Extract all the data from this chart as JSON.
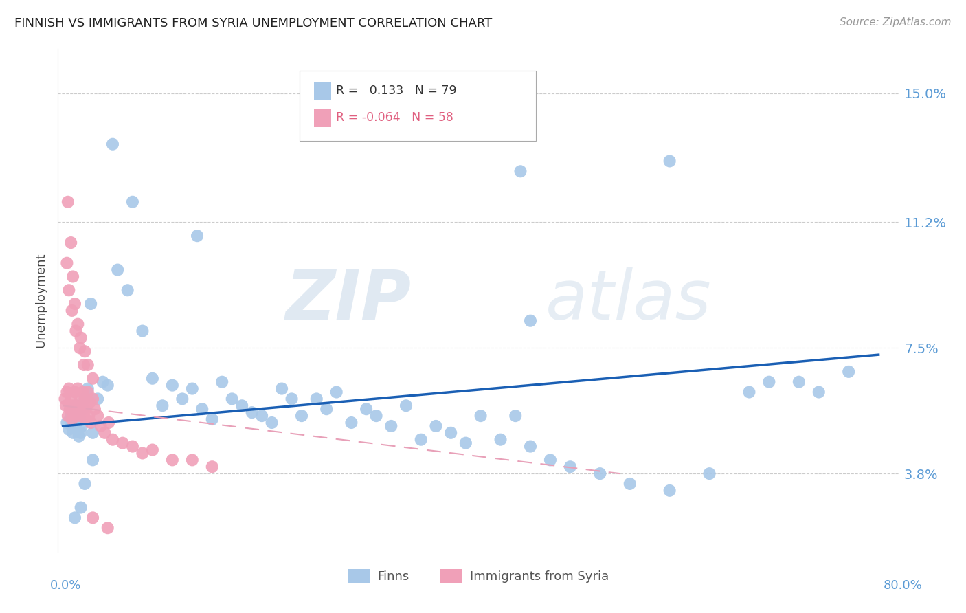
{
  "title": "FINNISH VS IMMIGRANTS FROM SYRIA UNEMPLOYMENT CORRELATION CHART",
  "source": "Source: ZipAtlas.com",
  "ylabel": "Unemployment",
  "ytick_labels": [
    "15.0%",
    "11.2%",
    "7.5%",
    "3.8%"
  ],
  "ytick_values": [
    0.15,
    0.112,
    0.075,
    0.038
  ],
  "ymin": 0.015,
  "ymax": 0.163,
  "xmin": -0.005,
  "xmax": 0.84,
  "color_finns": "#a8c8e8",
  "color_syria": "#f0a0b8",
  "color_line_finns": "#1a5fb4",
  "color_line_syria": "#e8a0b8",
  "color_axis_labels": "#5b9bd5",
  "color_grid": "#cccccc",
  "finns_line_x0": 0.0,
  "finns_line_x1": 0.82,
  "finns_line_y0": 0.052,
  "finns_line_y1": 0.073,
  "syria_line_x0": 0.0,
  "syria_line_x1": 0.56,
  "syria_line_y0": 0.058,
  "syria_line_y1": 0.038,
  "finns_x": [
    0.004,
    0.006,
    0.007,
    0.008,
    0.009,
    0.01,
    0.011,
    0.012,
    0.013,
    0.014,
    0.015,
    0.016,
    0.017,
    0.018,
    0.019,
    0.02,
    0.022,
    0.025,
    0.028,
    0.03,
    0.035,
    0.04,
    0.045,
    0.055,
    0.065,
    0.08,
    0.09,
    0.1,
    0.11,
    0.12,
    0.13,
    0.14,
    0.15,
    0.16,
    0.17,
    0.18,
    0.19,
    0.2,
    0.21,
    0.22,
    0.23,
    0.24,
    0.255,
    0.265,
    0.275,
    0.29,
    0.305,
    0.315,
    0.33,
    0.345,
    0.36,
    0.375,
    0.39,
    0.405,
    0.42,
    0.44,
    0.455,
    0.47,
    0.49,
    0.51,
    0.47,
    0.54,
    0.57,
    0.61,
    0.65,
    0.69,
    0.71,
    0.74,
    0.76,
    0.79,
    0.46,
    0.61,
    0.135,
    0.05,
    0.07,
    0.03,
    0.022,
    0.018,
    0.012
  ],
  "finns_y": [
    0.053,
    0.051,
    0.054,
    0.056,
    0.052,
    0.05,
    0.055,
    0.053,
    0.058,
    0.051,
    0.056,
    0.049,
    0.054,
    0.05,
    0.052,
    0.057,
    0.06,
    0.063,
    0.088,
    0.05,
    0.06,
    0.065,
    0.064,
    0.098,
    0.092,
    0.08,
    0.066,
    0.058,
    0.064,
    0.06,
    0.063,
    0.057,
    0.054,
    0.065,
    0.06,
    0.058,
    0.056,
    0.055,
    0.053,
    0.063,
    0.06,
    0.055,
    0.06,
    0.057,
    0.062,
    0.053,
    0.057,
    0.055,
    0.052,
    0.058,
    0.048,
    0.052,
    0.05,
    0.047,
    0.055,
    0.048,
    0.055,
    0.046,
    0.042,
    0.04,
    0.083,
    0.038,
    0.035,
    0.033,
    0.038,
    0.062,
    0.065,
    0.065,
    0.062,
    0.068,
    0.127,
    0.13,
    0.108,
    0.135,
    0.118,
    0.042,
    0.035,
    0.028,
    0.025
  ],
  "syria_x": [
    0.002,
    0.003,
    0.004,
    0.005,
    0.006,
    0.007,
    0.008,
    0.009,
    0.01,
    0.011,
    0.012,
    0.013,
    0.014,
    0.015,
    0.016,
    0.017,
    0.018,
    0.019,
    0.02,
    0.021,
    0.022,
    0.023,
    0.024,
    0.025,
    0.026,
    0.027,
    0.028,
    0.03,
    0.032,
    0.035,
    0.038,
    0.042,
    0.046,
    0.05,
    0.06,
    0.07,
    0.08,
    0.09,
    0.11,
    0.13,
    0.15,
    0.005,
    0.008,
    0.01,
    0.012,
    0.015,
    0.018,
    0.022,
    0.025,
    0.03,
    0.004,
    0.006,
    0.009,
    0.013,
    0.017,
    0.021,
    0.03,
    0.045
  ],
  "syria_y": [
    0.06,
    0.058,
    0.062,
    0.055,
    0.063,
    0.057,
    0.06,
    0.054,
    0.058,
    0.056,
    0.062,
    0.058,
    0.055,
    0.063,
    0.057,
    0.06,
    0.055,
    0.058,
    0.062,
    0.056,
    0.06,
    0.054,
    0.058,
    0.062,
    0.055,
    0.059,
    0.053,
    0.06,
    0.057,
    0.055,
    0.052,
    0.05,
    0.053,
    0.048,
    0.047,
    0.046,
    0.044,
    0.045,
    0.042,
    0.042,
    0.04,
    0.118,
    0.106,
    0.096,
    0.088,
    0.082,
    0.078,
    0.074,
    0.07,
    0.066,
    0.1,
    0.092,
    0.086,
    0.08,
    0.075,
    0.07,
    0.025,
    0.022
  ]
}
